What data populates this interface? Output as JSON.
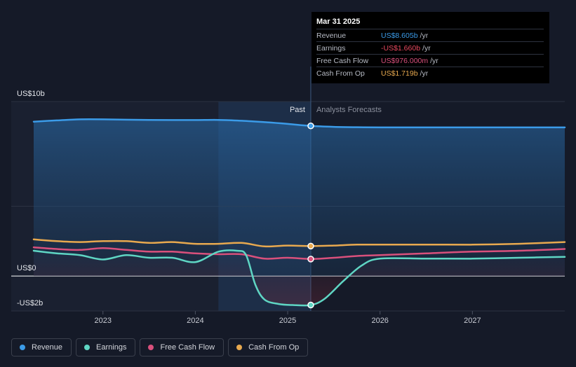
{
  "tooltip": {
    "date": "Mar 31 2025",
    "rows": [
      {
        "label": "Revenue",
        "value": "US$8.605b",
        "unit": "/yr",
        "color": "#3b9be8"
      },
      {
        "label": "Earnings",
        "value": "-US$1.660b",
        "unit": "/yr",
        "color": "#e8495f"
      },
      {
        "label": "Free Cash Flow",
        "value": "US$976.000m",
        "unit": "/yr",
        "color": "#d9507c"
      },
      {
        "label": "Cash From Op",
        "value": "US$1.719b",
        "unit": "/yr",
        "color": "#e8a94f"
      }
    ]
  },
  "legend": [
    {
      "label": "Revenue",
      "color": "#3b9be8"
    },
    {
      "label": "Earnings",
      "color": "#5fd6c4"
    },
    {
      "label": "Free Cash Flow",
      "color": "#d9507c"
    },
    {
      "label": "Cash From Op",
      "color": "#e8a94f"
    }
  ],
  "chart_data": {
    "type": "line",
    "past_label": "Past",
    "forecast_label": "Analysts Forecasts",
    "divider_date": 2025.25,
    "highlight_start": 2024.25,
    "xlim": [
      2022.25,
      2028.0
    ],
    "ylim": [
      -2.0,
      10.0
    ],
    "y_tick_labels": [
      {
        "value": 10,
        "label": "US$10b"
      },
      {
        "value": 0,
        "label": "US$0"
      },
      {
        "value": -2,
        "label": "-US$2b"
      }
    ],
    "x_ticks": [
      {
        "value": 2023,
        "label": "2023"
      },
      {
        "value": 2024,
        "label": "2024"
      },
      {
        "value": 2025,
        "label": "2025"
      },
      {
        "value": 2026,
        "label": "2026"
      },
      {
        "value": 2027,
        "label": "2027"
      }
    ],
    "series": [
      {
        "name": "Revenue",
        "color": "#3b9be8",
        "fill": true,
        "x": [
          2022.25,
          2022.5,
          2022.75,
          2023.0,
          2023.25,
          2023.5,
          2023.75,
          2024.0,
          2024.25,
          2024.5,
          2024.75,
          2025.0,
          2025.25,
          2025.5,
          2025.75,
          2026.0,
          2026.5,
          2027.0,
          2027.5,
          2028.0
        ],
        "y": [
          8.85,
          8.92,
          8.98,
          8.98,
          8.96,
          8.95,
          8.94,
          8.94,
          8.95,
          8.9,
          8.82,
          8.72,
          8.605,
          8.55,
          8.53,
          8.52,
          8.52,
          8.52,
          8.52,
          8.52
        ]
      },
      {
        "name": "Cash From Op",
        "color": "#e8a94f",
        "fill": false,
        "x": [
          2022.25,
          2022.5,
          2022.75,
          2023.0,
          2023.25,
          2023.5,
          2023.75,
          2024.0,
          2024.25,
          2024.5,
          2024.75,
          2025.0,
          2025.25,
          2025.5,
          2025.75,
          2026.0,
          2026.5,
          2027.0,
          2027.5,
          2028.0
        ],
        "y": [
          2.1,
          2.0,
          1.95,
          2.0,
          2.0,
          1.9,
          1.95,
          1.85,
          1.85,
          1.9,
          1.7,
          1.75,
          1.719,
          1.75,
          1.8,
          1.8,
          1.8,
          1.8,
          1.85,
          1.95
        ]
      },
      {
        "name": "Free Cash Flow",
        "color": "#d9507c",
        "fill": false,
        "x": [
          2022.25,
          2022.5,
          2022.75,
          2023.0,
          2023.25,
          2023.5,
          2023.75,
          2024.0,
          2024.25,
          2024.5,
          2024.75,
          2025.0,
          2025.25,
          2025.5,
          2025.75,
          2026.0,
          2026.5,
          2027.0,
          2027.5,
          2028.0
        ],
        "y": [
          1.65,
          1.55,
          1.5,
          1.6,
          1.5,
          1.4,
          1.4,
          1.3,
          1.25,
          1.25,
          1.0,
          1.05,
          0.976,
          1.05,
          1.15,
          1.2,
          1.3,
          1.4,
          1.45,
          1.55
        ]
      },
      {
        "name": "Earnings",
        "color": "#5fd6c4",
        "fill": false,
        "x": [
          2022.25,
          2022.5,
          2022.75,
          2023.0,
          2023.25,
          2023.5,
          2023.75,
          2024.0,
          2024.25,
          2024.45,
          2024.55,
          2024.65,
          2024.75,
          2024.9,
          2025.05,
          2025.25,
          2025.4,
          2025.6,
          2025.8,
          2026.0,
          2026.5,
          2027.0,
          2027.5,
          2028.0
        ],
        "y": [
          1.45,
          1.3,
          1.2,
          0.95,
          1.2,
          1.05,
          1.05,
          0.8,
          1.4,
          1.45,
          1.2,
          -0.5,
          -1.35,
          -1.6,
          -1.66,
          -1.66,
          -1.3,
          -0.3,
          0.6,
          1.0,
          1.0,
          1.0,
          1.05,
          1.1
        ]
      }
    ]
  }
}
